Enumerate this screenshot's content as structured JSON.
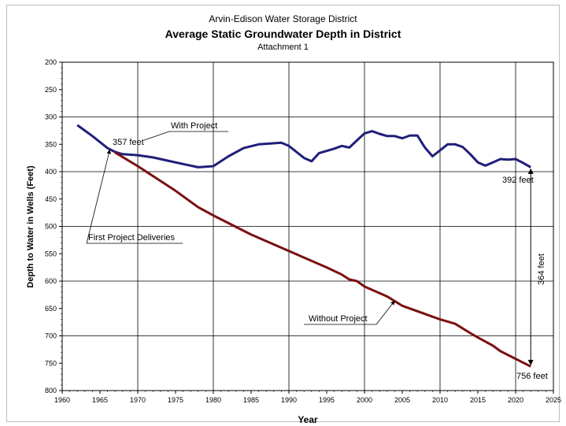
{
  "header": {
    "org": "Arvin-Edison Water Storage District",
    "title": "Average Static Groundwater Depth in District",
    "subtitle": "Attachment 1"
  },
  "chart_data": {
    "type": "line",
    "title": "Average Static Groundwater Depth in District",
    "xlabel": "Year",
    "ylabel": "Depth to Water in Wells (Feet)",
    "xlim": [
      1960,
      2025
    ],
    "ylim": [
      200,
      800
    ],
    "y_inverted": true,
    "grid": true,
    "x_ticks": [
      1960,
      1965,
      1970,
      1975,
      1980,
      1985,
      1990,
      1995,
      2000,
      2005,
      2010,
      2015,
      2020,
      2025
    ],
    "y_ticks": [
      200,
      250,
      300,
      350,
      400,
      450,
      500,
      550,
      600,
      650,
      700,
      750,
      800
    ],
    "series": [
      {
        "name": "With Project",
        "color": "#1f1f7a",
        "x": [
          1962,
          1964,
          1966,
          1967,
          1968,
          1970,
          1972,
          1974,
          1976,
          1978,
          1980,
          1982,
          1984,
          1986,
          1987,
          1989,
          1990,
          1992,
          1993,
          1994,
          1996,
          1997,
          1998,
          1999,
          2000,
          2001,
          2002,
          2003,
          2004,
          2005,
          2006,
          2007,
          2008,
          2009,
          2010,
          2011,
          2012,
          2013,
          2014,
          2015,
          2016,
          2017,
          2018,
          2019,
          2020,
          2021,
          2022
        ],
        "y": [
          315,
          335,
          357,
          364,
          368,
          370,
          374,
          380,
          386,
          392,
          390,
          372,
          357,
          350,
          349,
          347,
          353,
          375,
          381,
          366,
          358,
          353,
          356,
          343,
          330,
          326,
          331,
          335,
          335,
          339,
          334,
          334,
          356,
          372,
          361,
          350,
          350,
          355,
          368,
          383,
          389,
          383,
          377,
          378,
          377,
          384,
          392
        ]
      },
      {
        "name": "Without Project",
        "color": "#7a1010",
        "x": [
          1967,
          1970,
          1975,
          1978,
          1980,
          1985,
          1990,
          1995,
          1997,
          1998,
          1999,
          2000,
          2003,
          2005,
          2008,
          2010,
          2012,
          2014,
          2015,
          2017,
          2018,
          2020,
          2022
        ],
        "y": [
          365,
          390,
          435,
          465,
          480,
          515,
          545,
          575,
          588,
          597,
          600,
          610,
          628,
          645,
          660,
          670,
          678,
          695,
          703,
          718,
          728,
          742,
          756
        ]
      }
    ],
    "annotations": {
      "start_label": "357 feet",
      "end_with_label": "392 feet",
      "end_without_label": "756 feet",
      "difference_label": "364 feet",
      "first_delivery_label": "First Project Deliveries",
      "with_project_label": "With Project",
      "without_project_label": "Without Project"
    }
  }
}
